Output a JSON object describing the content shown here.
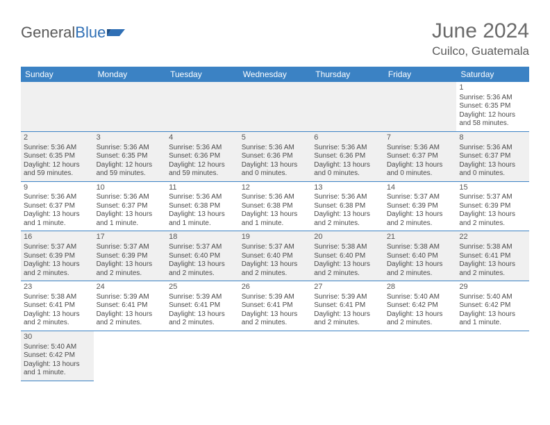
{
  "brand": {
    "word1": "General",
    "word2": "Blue"
  },
  "title": "June 2024",
  "location": "Cuilco, Guatemala",
  "colors": {
    "header_bg": "#3b82c4",
    "header_fg": "#ffffff",
    "alt_row_bg": "#f0f0f0",
    "cell_border": "#3b82c4",
    "text": "#4a4a4a",
    "title": "#6a6a6a",
    "logo_gray": "#5a5a5a",
    "logo_blue": "#2f6fb5"
  },
  "dayHeaders": [
    "Sunday",
    "Monday",
    "Tuesday",
    "Wednesday",
    "Thursday",
    "Friday",
    "Saturday"
  ],
  "weeks": [
    [
      null,
      null,
      null,
      null,
      null,
      null,
      {
        "n": "1",
        "sr": "Sunrise: 5:36 AM",
        "ss": "Sunset: 6:35 PM",
        "d1": "Daylight: 12 hours",
        "d2": "and 58 minutes."
      }
    ],
    [
      {
        "n": "2",
        "sr": "Sunrise: 5:36 AM",
        "ss": "Sunset: 6:35 PM",
        "d1": "Daylight: 12 hours",
        "d2": "and 59 minutes."
      },
      {
        "n": "3",
        "sr": "Sunrise: 5:36 AM",
        "ss": "Sunset: 6:35 PM",
        "d1": "Daylight: 12 hours",
        "d2": "and 59 minutes."
      },
      {
        "n": "4",
        "sr": "Sunrise: 5:36 AM",
        "ss": "Sunset: 6:36 PM",
        "d1": "Daylight: 12 hours",
        "d2": "and 59 minutes."
      },
      {
        "n": "5",
        "sr": "Sunrise: 5:36 AM",
        "ss": "Sunset: 6:36 PM",
        "d1": "Daylight: 13 hours",
        "d2": "and 0 minutes."
      },
      {
        "n": "6",
        "sr": "Sunrise: 5:36 AM",
        "ss": "Sunset: 6:36 PM",
        "d1": "Daylight: 13 hours",
        "d2": "and 0 minutes."
      },
      {
        "n": "7",
        "sr": "Sunrise: 5:36 AM",
        "ss": "Sunset: 6:37 PM",
        "d1": "Daylight: 13 hours",
        "d2": "and 0 minutes."
      },
      {
        "n": "8",
        "sr": "Sunrise: 5:36 AM",
        "ss": "Sunset: 6:37 PM",
        "d1": "Daylight: 13 hours",
        "d2": "and 0 minutes."
      }
    ],
    [
      {
        "n": "9",
        "sr": "Sunrise: 5:36 AM",
        "ss": "Sunset: 6:37 PM",
        "d1": "Daylight: 13 hours",
        "d2": "and 1 minute."
      },
      {
        "n": "10",
        "sr": "Sunrise: 5:36 AM",
        "ss": "Sunset: 6:37 PM",
        "d1": "Daylight: 13 hours",
        "d2": "and 1 minute."
      },
      {
        "n": "11",
        "sr": "Sunrise: 5:36 AM",
        "ss": "Sunset: 6:38 PM",
        "d1": "Daylight: 13 hours",
        "d2": "and 1 minute."
      },
      {
        "n": "12",
        "sr": "Sunrise: 5:36 AM",
        "ss": "Sunset: 6:38 PM",
        "d1": "Daylight: 13 hours",
        "d2": "and 1 minute."
      },
      {
        "n": "13",
        "sr": "Sunrise: 5:36 AM",
        "ss": "Sunset: 6:38 PM",
        "d1": "Daylight: 13 hours",
        "d2": "and 2 minutes."
      },
      {
        "n": "14",
        "sr": "Sunrise: 5:37 AM",
        "ss": "Sunset: 6:39 PM",
        "d1": "Daylight: 13 hours",
        "d2": "and 2 minutes."
      },
      {
        "n": "15",
        "sr": "Sunrise: 5:37 AM",
        "ss": "Sunset: 6:39 PM",
        "d1": "Daylight: 13 hours",
        "d2": "and 2 minutes."
      }
    ],
    [
      {
        "n": "16",
        "sr": "Sunrise: 5:37 AM",
        "ss": "Sunset: 6:39 PM",
        "d1": "Daylight: 13 hours",
        "d2": "and 2 minutes."
      },
      {
        "n": "17",
        "sr": "Sunrise: 5:37 AM",
        "ss": "Sunset: 6:39 PM",
        "d1": "Daylight: 13 hours",
        "d2": "and 2 minutes."
      },
      {
        "n": "18",
        "sr": "Sunrise: 5:37 AM",
        "ss": "Sunset: 6:40 PM",
        "d1": "Daylight: 13 hours",
        "d2": "and 2 minutes."
      },
      {
        "n": "19",
        "sr": "Sunrise: 5:37 AM",
        "ss": "Sunset: 6:40 PM",
        "d1": "Daylight: 13 hours",
        "d2": "and 2 minutes."
      },
      {
        "n": "20",
        "sr": "Sunrise: 5:38 AM",
        "ss": "Sunset: 6:40 PM",
        "d1": "Daylight: 13 hours",
        "d2": "and 2 minutes."
      },
      {
        "n": "21",
        "sr": "Sunrise: 5:38 AM",
        "ss": "Sunset: 6:40 PM",
        "d1": "Daylight: 13 hours",
        "d2": "and 2 minutes."
      },
      {
        "n": "22",
        "sr": "Sunrise: 5:38 AM",
        "ss": "Sunset: 6:41 PM",
        "d1": "Daylight: 13 hours",
        "d2": "and 2 minutes."
      }
    ],
    [
      {
        "n": "23",
        "sr": "Sunrise: 5:38 AM",
        "ss": "Sunset: 6:41 PM",
        "d1": "Daylight: 13 hours",
        "d2": "and 2 minutes."
      },
      {
        "n": "24",
        "sr": "Sunrise: 5:39 AM",
        "ss": "Sunset: 6:41 PM",
        "d1": "Daylight: 13 hours",
        "d2": "and 2 minutes."
      },
      {
        "n": "25",
        "sr": "Sunrise: 5:39 AM",
        "ss": "Sunset: 6:41 PM",
        "d1": "Daylight: 13 hours",
        "d2": "and 2 minutes."
      },
      {
        "n": "26",
        "sr": "Sunrise: 5:39 AM",
        "ss": "Sunset: 6:41 PM",
        "d1": "Daylight: 13 hours",
        "d2": "and 2 minutes."
      },
      {
        "n": "27",
        "sr": "Sunrise: 5:39 AM",
        "ss": "Sunset: 6:41 PM",
        "d1": "Daylight: 13 hours",
        "d2": "and 2 minutes."
      },
      {
        "n": "28",
        "sr": "Sunrise: 5:40 AM",
        "ss": "Sunset: 6:42 PM",
        "d1": "Daylight: 13 hours",
        "d2": "and 2 minutes."
      },
      {
        "n": "29",
        "sr": "Sunrise: 5:40 AM",
        "ss": "Sunset: 6:42 PM",
        "d1": "Daylight: 13 hours",
        "d2": "and 1 minute."
      }
    ],
    [
      {
        "n": "30",
        "sr": "Sunrise: 5:40 AM",
        "ss": "Sunset: 6:42 PM",
        "d1": "Daylight: 13 hours",
        "d2": "and 1 minute."
      },
      null,
      null,
      null,
      null,
      null,
      null
    ]
  ]
}
